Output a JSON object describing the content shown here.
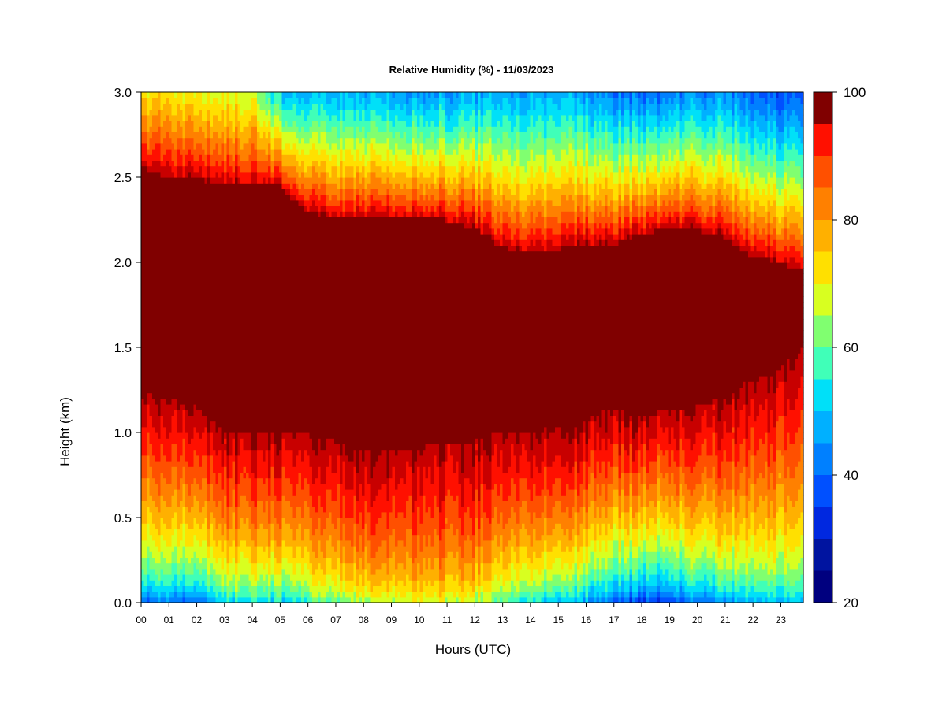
{
  "chart_data": {
    "type": "heatmap",
    "title": "Relative Humidity (%) - 11/03/2023",
    "xlabel": "Hours (UTC)",
    "ylabel": "Height (km)",
    "x_ticks": [
      "00",
      "01",
      "02",
      "03",
      "04",
      "05",
      "06",
      "07",
      "08",
      "09",
      "10",
      "11",
      "12",
      "13",
      "14",
      "15",
      "16",
      "17",
      "18",
      "19",
      "20",
      "21",
      "22",
      "23"
    ],
    "xlim": [
      0,
      24
    ],
    "y_ticks": [
      "0.0",
      "0.5",
      "1.0",
      "1.5",
      "2.0",
      "2.5",
      "3.0"
    ],
    "ylim": [
      0,
      3.0
    ],
    "colorbar": {
      "ticks": [
        "20",
        "40",
        "60",
        "80",
        "100"
      ],
      "range": [
        20,
        100
      ],
      "levels": [
        20,
        25,
        30,
        35,
        40,
        45,
        50,
        55,
        60,
        65,
        70,
        75,
        80,
        85,
        90,
        95,
        100
      ],
      "colors": [
        "#00007f",
        "#0014a0",
        "#0028e0",
        "#0050ff",
        "#0080ff",
        "#00b0ff",
        "#00e0f8",
        "#40ffb8",
        "#80ff70",
        "#d8ff20",
        "#ffe000",
        "#ffb000",
        "#ff8000",
        "#ff5000",
        "#ff1000",
        "#c80000",
        "#800000"
      ]
    },
    "profiles": {
      "hours": [
        0,
        1,
        2,
        3,
        4,
        5,
        6,
        7,
        8,
        9,
        10,
        11,
        12,
        13,
        14,
        15,
        16,
        17,
        18,
        19,
        20,
        21,
        22,
        23,
        24
      ],
      "sat_top_km": [
        2.55,
        2.5,
        2.5,
        2.45,
        2.45,
        2.45,
        2.3,
        2.25,
        2.25,
        2.25,
        2.25,
        2.25,
        2.2,
        2.1,
        2.05,
        2.05,
        2.1,
        2.1,
        2.15,
        2.2,
        2.2,
        2.15,
        2.05,
        2.0,
        1.95
      ],
      "sat_bottom_km": [
        1.25,
        1.2,
        1.15,
        1.0,
        1.0,
        1.0,
        1.0,
        0.95,
        0.9,
        0.9,
        0.9,
        0.95,
        0.95,
        1.0,
        1.0,
        1.05,
        1.05,
        1.15,
        1.1,
        1.15,
        1.15,
        1.2,
        1.3,
        1.35,
        1.5
      ],
      "surface_rh_pct": [
        36,
        38,
        36,
        48,
        50,
        46,
        52,
        56,
        60,
        62,
        66,
        66,
        62,
        56,
        50,
        44,
        42,
        34,
        30,
        30,
        36,
        40,
        44,
        46,
        46
      ],
      "top_rh_pct": [
        72,
        72,
        70,
        68,
        68,
        50,
        48,
        48,
        46,
        46,
        46,
        46,
        46,
        48,
        46,
        46,
        46,
        42,
        40,
        42,
        44,
        44,
        40,
        38,
        38
      ]
    }
  }
}
